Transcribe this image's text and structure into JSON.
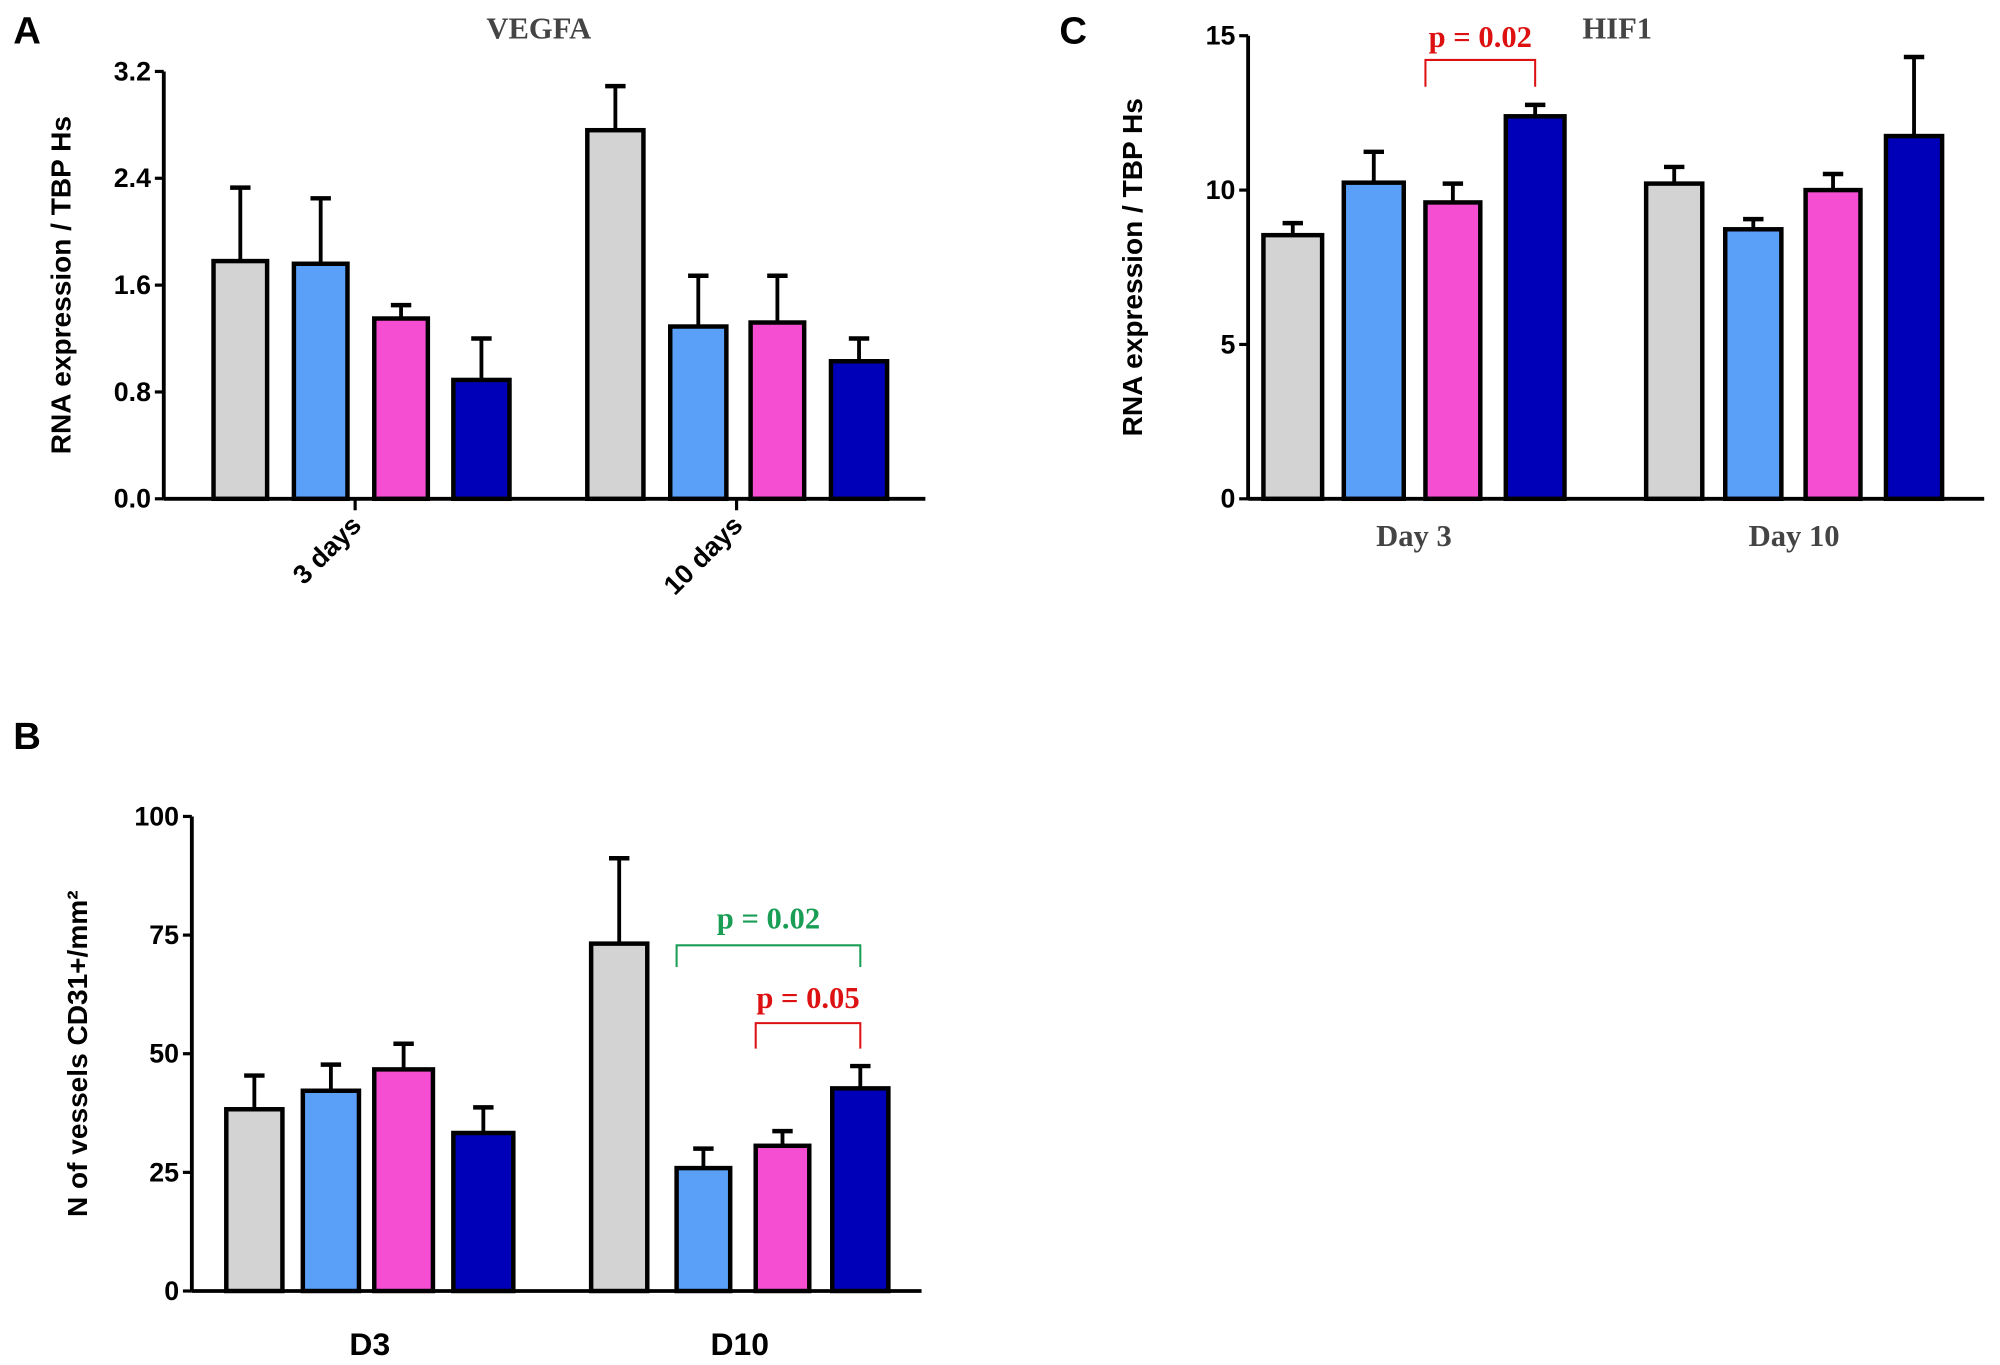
{
  "colors": {
    "gray": "#d3d3d3",
    "blue": "#5aa0f8",
    "pink": "#f64ed3",
    "navy": "#0000b8",
    "pvalue_red": "#dd1111",
    "pvalue_green": "#1a9e55",
    "title": "#444444"
  },
  "chart_data": [
    {
      "panel": "A",
      "type": "bar",
      "title": "VEGFA",
      "ylabel": "RNA expression / TBP Hs",
      "xlabel": "",
      "categories": [
        "3 days",
        "10 days"
      ],
      "ylim": [
        0,
        3.2
      ],
      "yticks": [
        "0.0",
        "0.8",
        "1.6",
        "2.4",
        "3.2"
      ],
      "series_colors": [
        "#d3d3d3",
        "#5aa0f8",
        "#f64ed3",
        "#0000b8"
      ],
      "values": [
        [
          1.78,
          1.76,
          1.35,
          0.89
        ],
        [
          2.76,
          1.29,
          1.32,
          1.03
        ]
      ],
      "error_upper": [
        [
          2.33,
          2.25,
          1.45,
          1.2
        ],
        [
          3.09,
          1.67,
          1.67,
          1.2
        ]
      ],
      "annotations": []
    },
    {
      "panel": "B",
      "type": "bar",
      "title": "",
      "ylabel": "N of vessels CD31+/mm²",
      "xlabel": "",
      "categories": [
        "D3",
        "D10"
      ],
      "ylim": [
        0,
        100
      ],
      "yticks": [
        "0",
        "25",
        "50",
        "75",
        "100"
      ],
      "series_colors": [
        "#d3d3d3",
        "#5aa0f8",
        "#f64ed3",
        "#0000b8"
      ],
      "values": [
        [
          38.3,
          42.2,
          46.7,
          33.3
        ],
        [
          73.2,
          25.9,
          30.6,
          42.7
        ]
      ],
      "error_upper": [
        [
          45.4,
          47.7,
          52.1,
          38.7
        ],
        [
          91.2,
          30.0,
          33.7,
          47.4
        ]
      ],
      "annotations": [
        {
          "text": "p = 0.02",
          "color": "#1a9e55",
          "group": 1,
          "from_bar": 1,
          "to_bar": 3
        },
        {
          "text": "p = 0.05",
          "color": "#dd1111",
          "group": 1,
          "from_bar": 2,
          "to_bar": 3
        }
      ]
    },
    {
      "panel": "C",
      "type": "bar",
      "title": "HIF1",
      "ylabel": "RNA expression / TBP Hs",
      "xlabel": "",
      "categories": [
        "Day 3",
        "Day 10"
      ],
      "ylim": [
        0,
        15
      ],
      "yticks": [
        "0",
        "5",
        "10",
        "15"
      ],
      "series_colors": [
        "#d3d3d3",
        "#5aa0f8",
        "#f64ed3",
        "#0000b8"
      ],
      "values": [
        [
          8.54,
          10.24,
          9.6,
          12.39
        ],
        [
          10.21,
          8.73,
          10.0,
          11.75
        ]
      ],
      "error_upper": [
        [
          8.93,
          11.24,
          10.21,
          12.76
        ],
        [
          10.75,
          9.06,
          10.52,
          14.31
        ]
      ],
      "annotations": [
        {
          "text": "p = 0.02",
          "color": "#dd1111",
          "group": 0,
          "from_bar": 2,
          "to_bar": 3
        }
      ]
    }
  ]
}
